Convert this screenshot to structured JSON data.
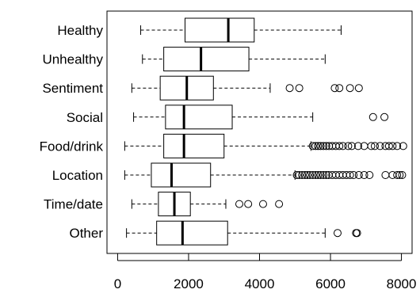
{
  "chart_data": {
    "type": "boxplot",
    "orientation": "horizontal",
    "title": "",
    "xlabel": "",
    "ylabel": "",
    "xlim": [
      -300,
      8300
    ],
    "xticks": [
      0,
      2000,
      4000,
      6000,
      8000
    ],
    "grid": false,
    "legend": "none",
    "colors": {
      "stroke": "#000000",
      "fill": "#ffffff"
    },
    "categories": [
      {
        "name": "Healthy",
        "whisker_low": 650,
        "q1": 1900,
        "median": 3120,
        "q3": 3850,
        "whisker_high": 6300,
        "outliers": []
      },
      {
        "name": "Unhealthy",
        "whisker_low": 700,
        "q1": 1300,
        "median": 2350,
        "q3": 3700,
        "whisker_high": 5850,
        "outliers": []
      },
      {
        "name": "Sentiment",
        "whisker_low": 400,
        "q1": 1200,
        "median": 1950,
        "q3": 2700,
        "whisker_high": 4300,
        "outliers": [
          4850,
          5120,
          6120,
          6250,
          6550,
          6800
        ]
      },
      {
        "name": "Social",
        "whisker_low": 450,
        "q1": 1350,
        "median": 1870,
        "q3": 3230,
        "whisker_high": 5500,
        "outliers": [
          7200,
          7520
        ]
      },
      {
        "name": "Food/drink",
        "whisker_low": 200,
        "q1": 1300,
        "median": 1870,
        "q3": 3000,
        "whisker_high": 5450,
        "outliers": [
          5500,
          5580,
          5650,
          5720,
          5800,
          5880,
          5960,
          6050,
          6150,
          6250,
          6350,
          6500,
          6600,
          6780,
          6950,
          7150,
          7250,
          7400,
          7550,
          7650,
          7750,
          7880,
          8050
        ]
      },
      {
        "name": "Location",
        "whisker_low": 200,
        "q1": 950,
        "median": 1520,
        "q3": 2620,
        "whisker_high": 5000,
        "outliers": [
          5050,
          5120,
          5200,
          5280,
          5350,
          5420,
          5500,
          5580,
          5650,
          5720,
          5800,
          5880,
          5950,
          6050,
          6150,
          6250,
          6350,
          6450,
          6550,
          6650,
          6800,
          6950,
          7100,
          7550,
          7750,
          7880,
          7950,
          8020
        ]
      },
      {
        "name": "Time/date",
        "whisker_low": 400,
        "q1": 1150,
        "median": 1600,
        "q3": 2050,
        "whisker_high": 3050,
        "outliers": [
          3430,
          3680,
          4100,
          4550
        ]
      },
      {
        "name": "Other",
        "whisker_low": 250,
        "q1": 1100,
        "median": 1830,
        "q3": 3100,
        "whisker_high": 5850,
        "outliers": [
          6200,
          6720,
          6750
        ]
      }
    ]
  }
}
